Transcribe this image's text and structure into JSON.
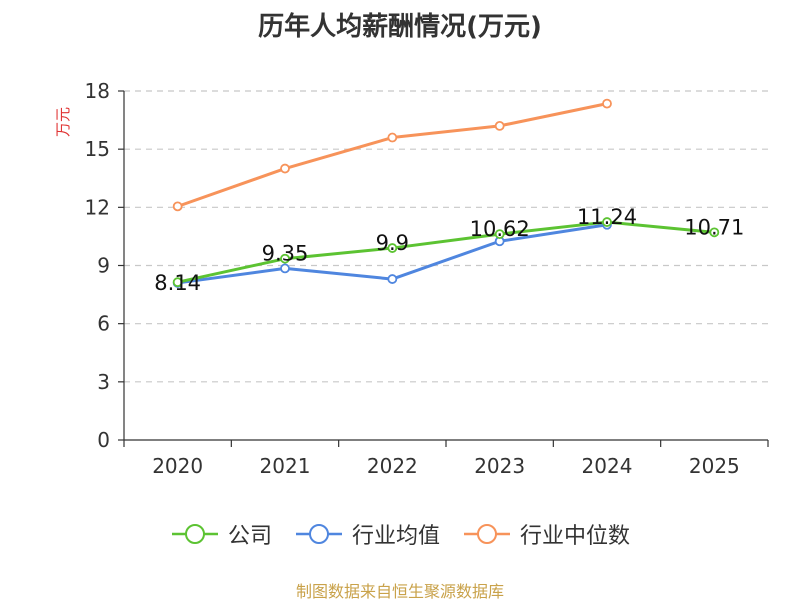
{
  "title": "历年人均薪酬情况(万元)",
  "source": "制图数据来自恒生聚源数据库",
  "colors": {
    "company": "#5cc332",
    "industry_avg": "#4f86df",
    "industry_median": "#f7935a",
    "axis": "#333333",
    "grid": "#c8c8c8",
    "ylabel": "#e03535"
  },
  "chart_data": {
    "type": "line",
    "title": "历年人均薪酬情况(万元)",
    "xlabel": "",
    "ylabel": "万元",
    "categories": [
      "2020",
      "2021",
      "2022",
      "2023",
      "2024",
      "2025"
    ],
    "ylim": [
      0,
      18
    ],
    "yticks": [
      0,
      3,
      6,
      9,
      12,
      15,
      18
    ],
    "grid": true,
    "legend_position": "bottom",
    "series": [
      {
        "name": "公司",
        "key": "company",
        "values": [
          8.14,
          9.35,
          9.9,
          10.62,
          11.24,
          10.71
        ],
        "labels": [
          "8.14",
          "9.35",
          "9.9",
          "10.62",
          "11.24",
          "10.71"
        ]
      },
      {
        "name": "行业均值",
        "key": "industry_avg",
        "values": [
          8.1,
          8.85,
          8.3,
          10.25,
          11.1,
          null
        ]
      },
      {
        "name": "行业中位数",
        "key": "industry_median",
        "values": [
          12.05,
          14.0,
          15.6,
          16.2,
          17.35,
          null
        ]
      }
    ]
  }
}
